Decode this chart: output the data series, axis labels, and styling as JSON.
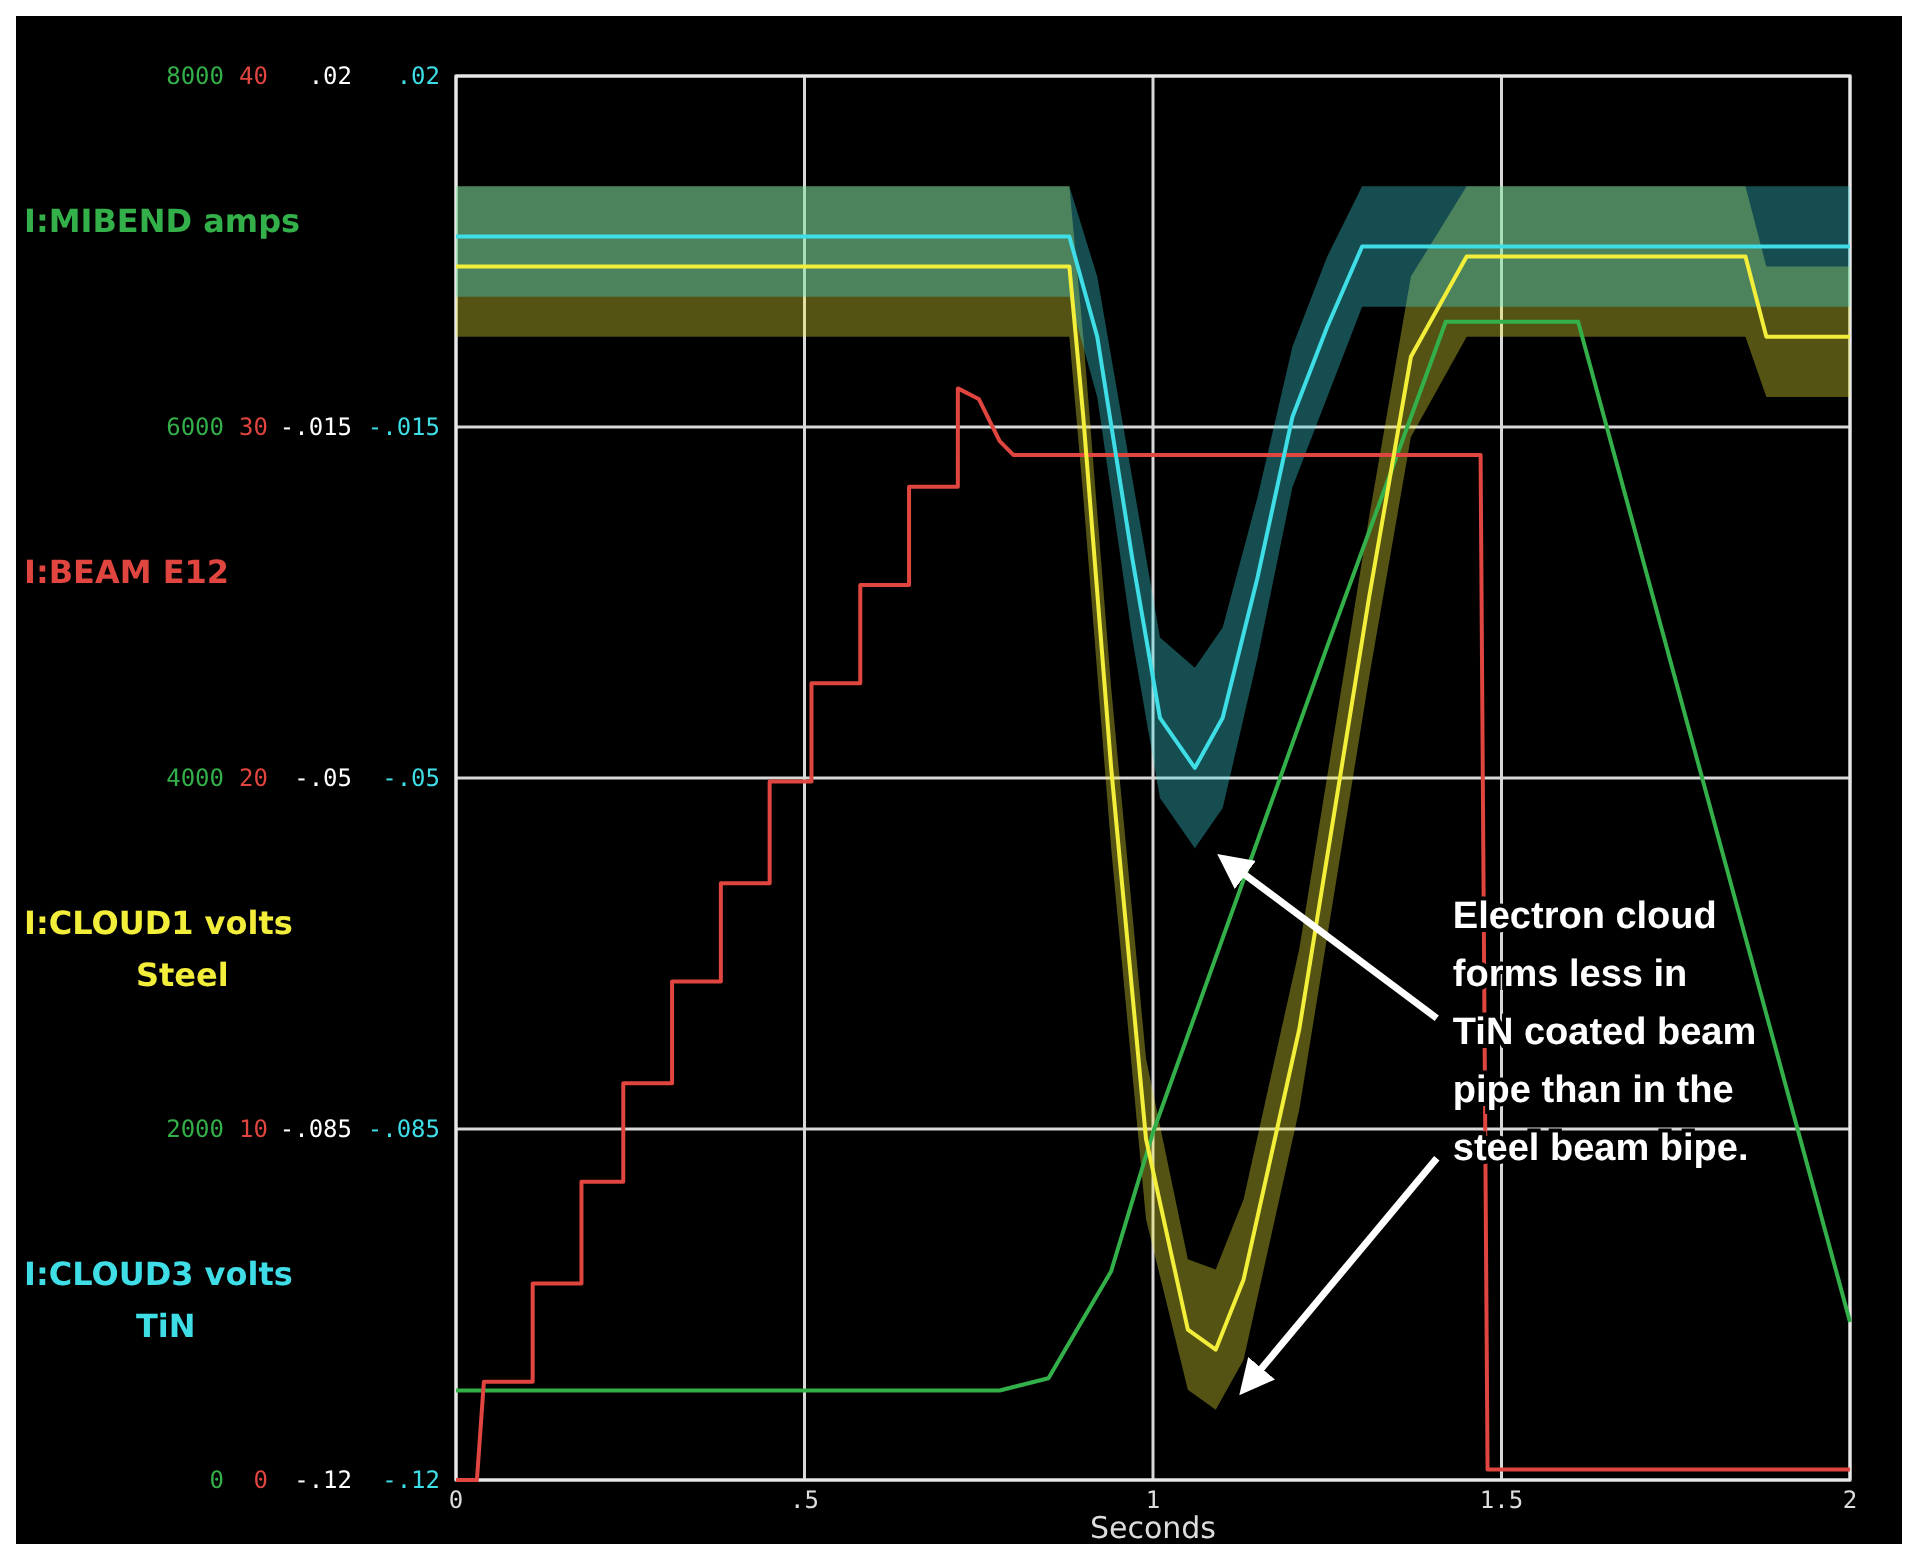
{
  "chart_data": {
    "type": "line",
    "xlabel": "Seconds",
    "legend": "left",
    "grid": true,
    "xlim": [
      0,
      2
    ],
    "xticks": [
      0,
      {
        "value": 0.5,
        "label": ".5"
      },
      1,
      {
        "value": 1.5,
        "label": "1.5"
      },
      2
    ],
    "ylim": [
      0,
      8000
    ],
    "yticks": [
      0,
      2000,
      4000,
      6000,
      8000
    ],
    "y2lim": [
      0,
      40
    ],
    "y2ticks": [
      0,
      10,
      20,
      30,
      40
    ],
    "y3lim": [
      -0.12,
      0.02
    ],
    "y3ticks": [
      {
        "value": -0.12,
        "label": "-.12"
      },
      {
        "value": -0.085,
        "label": "-.085"
      },
      {
        "value": -0.05,
        "label": "-.05"
      },
      {
        "value": -0.015,
        "label": "-.015"
      },
      {
        "value": 0.02,
        "label": ".02"
      }
    ],
    "series": [
      {
        "name": "I:MIBEND amps",
        "color": "#33b04a",
        "x": [
          0,
          0.78,
          0.85,
          0.94,
          1.0,
          1.25,
          1.42,
          1.61,
          2.0
        ],
        "values": [
          510,
          510,
          580,
          1190,
          1980,
          4750,
          6600,
          6600,
          900
        ]
      },
      {
        "name": "I:BEAM E12",
        "color": "#e0453f",
        "axis": "y2",
        "x": [
          0,
          0.03,
          0.04,
          0.11,
          0.11,
          0.18,
          0.18,
          0.24,
          0.24,
          0.31,
          0.31,
          0.38,
          0.38,
          0.45,
          0.45,
          0.51,
          0.51,
          0.58,
          0.58,
          0.65,
          0.65,
          0.72,
          0.72,
          0.75,
          0.78,
          0.8,
          1.47,
          1.48,
          2
        ],
        "values": [
          0,
          0,
          2.8,
          2.8,
          5.6,
          5.6,
          8.5,
          8.5,
          11.3,
          11.3,
          14.2,
          14.2,
          17.0,
          17.0,
          19.9,
          19.9,
          22.7,
          22.7,
          25.5,
          25.5,
          28.3,
          28.3,
          31.1,
          30.8,
          29.6,
          29.2,
          29.2,
          0.3,
          0.3
        ]
      },
      {
        "name": "I:CLOUD1 volts\nSteel",
        "color": "#f2ee3a",
        "axis": "y3",
        "x": [
          0,
          0.88,
          0.9,
          0.94,
          0.99,
          1.05,
          1.09,
          1.13,
          1.21,
          1.31,
          1.37,
          1.45,
          1.85,
          1.88,
          2
        ],
        "values": [
          0.001,
          0.001,
          -0.014,
          -0.049,
          -0.086,
          -0.105,
          -0.107,
          -0.1,
          -0.075,
          -0.032,
          -0.008,
          0.002,
          0.002,
          -0.006,
          -0.006
        ],
        "upper": [
          0.009,
          0.009,
          -0.006,
          -0.041,
          -0.078,
          -0.098,
          -0.099,
          -0.092,
          -0.067,
          -0.024,
          0.0,
          0.009,
          0.009,
          0.001,
          0.001
        ],
        "lower": [
          -0.006,
          -0.006,
          -0.022,
          -0.057,
          -0.094,
          -0.111,
          -0.113,
          -0.108,
          -0.083,
          -0.04,
          -0.016,
          -0.006,
          -0.006,
          -0.012,
          -0.012
        ]
      },
      {
        "name": "I:CLOUD3 volts\nTiN",
        "color": "#3fdde6",
        "axis": "y3",
        "x": [
          0,
          0.88,
          0.92,
          0.97,
          1.01,
          1.06,
          1.1,
          1.15,
          1.2,
          1.25,
          1.3,
          2
        ],
        "values": [
          0.004,
          0.004,
          -0.006,
          -0.028,
          -0.044,
          -0.049,
          -0.044,
          -0.03,
          -0.014,
          -0.005,
          0.003,
          0.003
        ],
        "upper": [
          0.009,
          0.009,
          0.0,
          -0.02,
          -0.036,
          -0.039,
          -0.035,
          -0.022,
          -0.007,
          0.002,
          0.009,
          0.009
        ],
        "lower": [
          -0.002,
          -0.002,
          -0.012,
          -0.036,
          -0.052,
          -0.057,
          -0.053,
          -0.038,
          -0.021,
          -0.012,
          -0.003,
          -0.003
        ]
      }
    ],
    "annotations": [
      "Electron cloud forms less in TiN coated beam pipe than in the steel beam bipe."
    ]
  }
}
